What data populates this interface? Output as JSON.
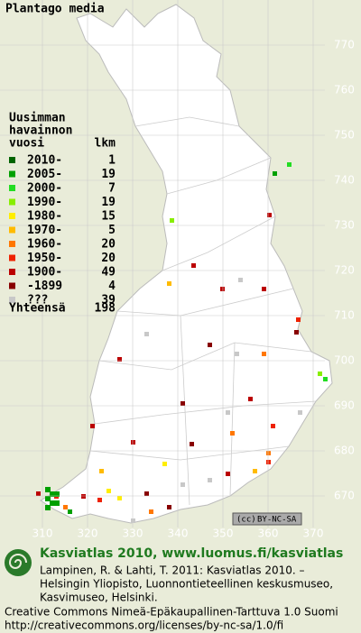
{
  "title": "Plantago media",
  "legend": {
    "heading": [
      "Uusimman",
      "havainnon",
      "vuosi"
    ],
    "count_heading": "lkm",
    "items": [
      {
        "label": "2010-",
        "count": 1,
        "color": "#006400"
      },
      {
        "label": "2005-",
        "count": 19,
        "color": "#00a000"
      },
      {
        "label": "2000-",
        "count": 7,
        "color": "#22dd22"
      },
      {
        "label": "1990-",
        "count": 19,
        "color": "#88ee00"
      },
      {
        "label": "1980-",
        "count": 15,
        "color": "#ffee00"
      },
      {
        "label": "1970-",
        "count": 5,
        "color": "#ffbb00"
      },
      {
        "label": "1960-",
        "count": 20,
        "color": "#ff7700"
      },
      {
        "label": "1950-",
        "count": 20,
        "color": "#ee2200"
      },
      {
        "label": "1900-",
        "count": 49,
        "color": "#bb0000"
      },
      {
        "label": "-1899",
        "count": 4,
        "color": "#880000"
      },
      {
        "label": "???",
        "count": 39,
        "color": "#c8c8c8"
      }
    ],
    "total_label": "Yhteensä",
    "total": 198
  },
  "northing": [
    770,
    760,
    750,
    740,
    730,
    720,
    710,
    700,
    690,
    680,
    670
  ],
  "easting": [
    310,
    320,
    330,
    340,
    350,
    360,
    370
  ],
  "license_badge": "BY-NC-SA",
  "footer": {
    "heading": "Kasviatlas 2010, www.luomus.fi/kasviatlas",
    "citation": [
      "Lampinen, R. & Lahti, T. 2011: Kasviatlas 2010. –",
      "Helsingin Yliopisto, Luonnontieteellinen keskusmuseo,",
      "Kasvimuseo, Helsinki."
    ],
    "license": [
      "Creative Commons Nimeä-Epäkaupallinen-Tarttuva 1.0 Suomi",
      "http://creativecommons.org/licenses/by-nc-sa/1.0/fi"
    ]
  }
}
